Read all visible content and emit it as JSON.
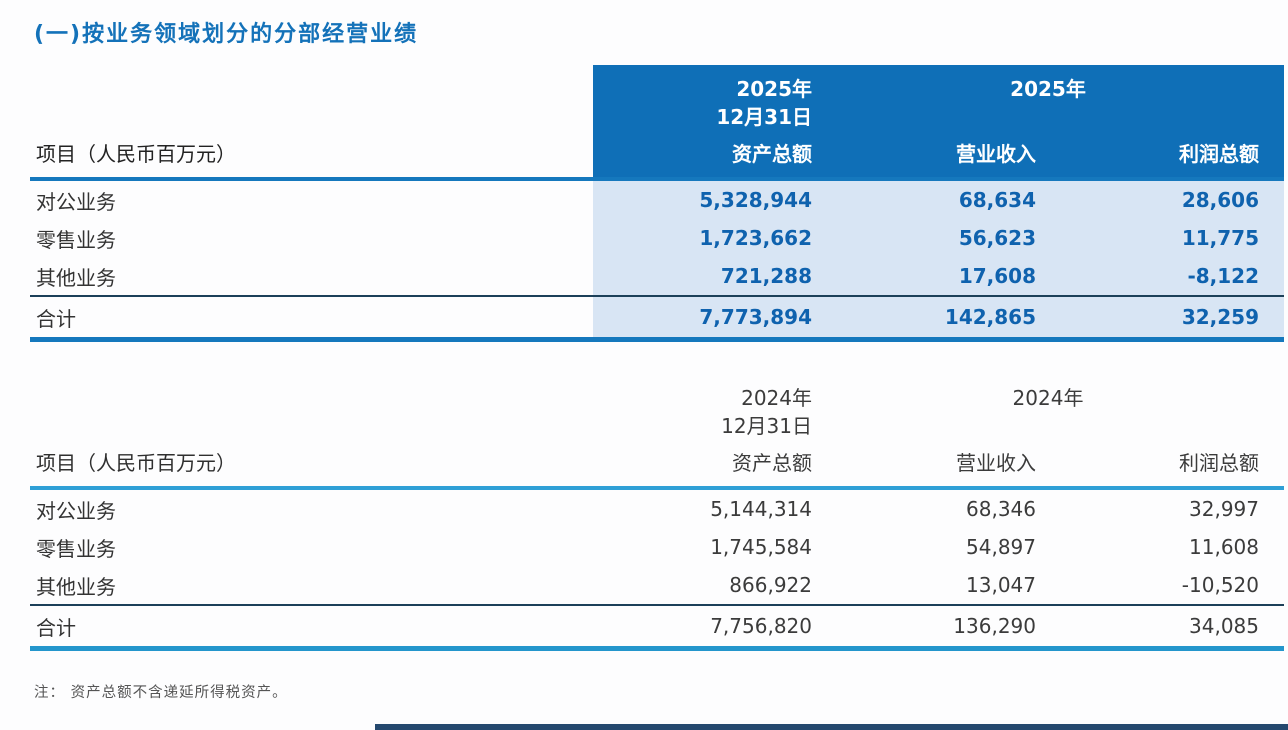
{
  "page": {
    "title": "(一)按业务领域划分的分部经营业绩",
    "footnote": "注： 资产总额不含递延所得税资产。"
  },
  "colors": {
    "title_blue": "#1472b9",
    "header_band_blue": "#0f6fb7",
    "light_blue_column": "#d8e5f4",
    "table1_number_blue": "#0f62ae",
    "table1_rule_blue": "#1578bd",
    "table2_rule_blue": "#2e9fd6",
    "total_divider_navy": "#1c4059",
    "bottom_bar_navy": "#24486e"
  },
  "tables": [
    {
      "name": "2025 segment results",
      "header": {
        "project_label": "项目（人民币百万元）",
        "col1_period_line1": "2025年",
        "col1_period_line2": "12月31日",
        "col23_period": "2025年",
        "col1_metric": "资产总额",
        "col2_metric": "营业收入",
        "col3_metric": "利润总额"
      },
      "rows": [
        {
          "label": "对公业务",
          "assets": "5,328,944",
          "revenue": "68,634",
          "profit": "28,606"
        },
        {
          "label": "零售业务",
          "assets": "1,723,662",
          "revenue": "56,623",
          "profit": "11,775"
        },
        {
          "label": "其他业务",
          "assets": "721,288",
          "revenue": "17,608",
          "profit": "-8,122"
        }
      ],
      "total": {
        "label": "合计",
        "assets": "7,773,894",
        "revenue": "142,865",
        "profit": "32,259"
      }
    },
    {
      "name": "2024 segment results",
      "header": {
        "project_label": "项目（人民币百万元）",
        "col1_period_line1": "2024年",
        "col1_period_line2": "12月31日",
        "col23_period": "2024年",
        "col1_metric": "资产总额",
        "col2_metric": "营业收入",
        "col3_metric": "利润总额"
      },
      "rows": [
        {
          "label": "对公业务",
          "assets": "5,144,314",
          "revenue": "68,346",
          "profit": "32,997"
        },
        {
          "label": "零售业务",
          "assets": "1,745,584",
          "revenue": "54,897",
          "profit": "11,608"
        },
        {
          "label": "其他业务",
          "assets": "866,922",
          "revenue": "13,047",
          "profit": "-10,520"
        }
      ],
      "total": {
        "label": "合计",
        "assets": "7,756,820",
        "revenue": "136,290",
        "profit": "34,085"
      }
    }
  ]
}
